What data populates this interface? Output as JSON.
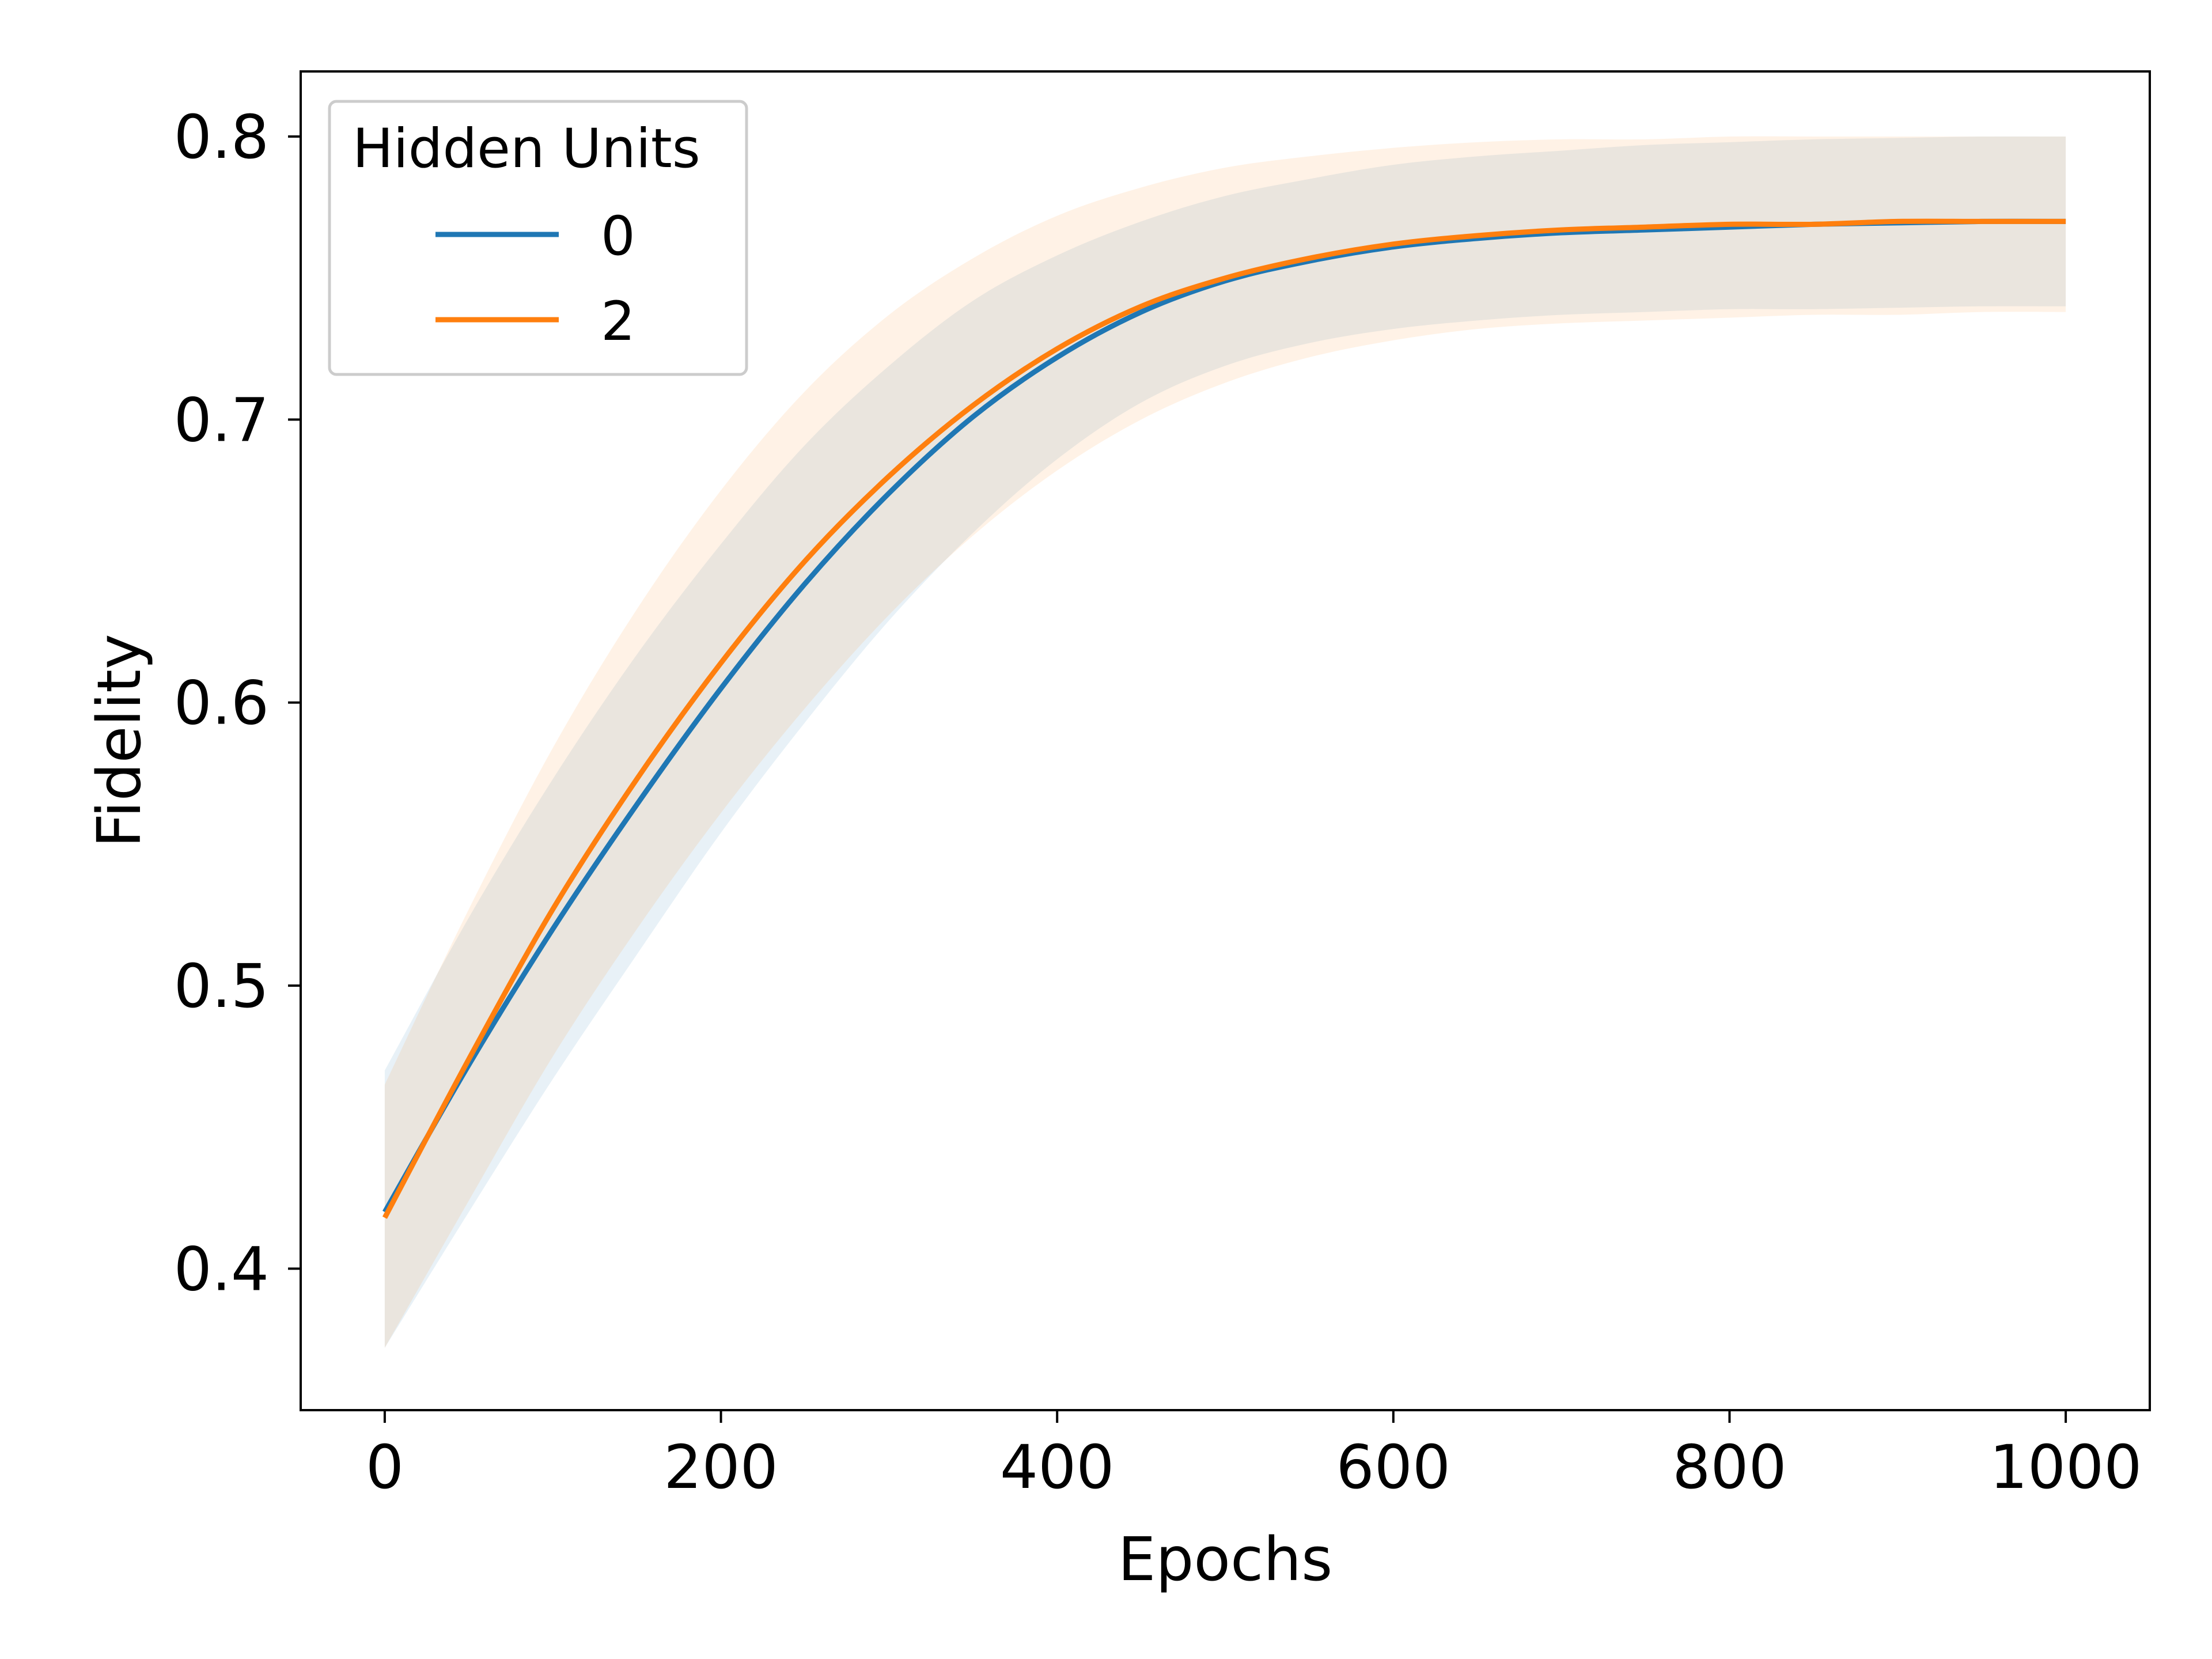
{
  "chart_data": {
    "type": "line",
    "title": "",
    "xlabel": "Epochs",
    "ylabel": "Fidelity",
    "xlim": [
      -50,
      1050
    ],
    "ylim": [
      0.35,
      0.823
    ],
    "xticks": [
      0,
      200,
      400,
      600,
      800,
      1000
    ],
    "xtick_labels": [
      "0",
      "200",
      "400",
      "600",
      "800",
      "1000"
    ],
    "yticks": [
      0.4,
      0.5,
      0.6,
      0.7,
      0.8
    ],
    "ytick_labels": [
      "0.4",
      "0.5",
      "0.6",
      "0.7",
      "0.8"
    ],
    "grid": false,
    "legend": {
      "title": "Hidden Units",
      "placement": "top-left"
    },
    "x": [
      0,
      50,
      100,
      150,
      200,
      250,
      300,
      350,
      400,
      450,
      500,
      550,
      600,
      650,
      700,
      750,
      800,
      850,
      900,
      950,
      1000
    ],
    "series": [
      {
        "name": "0",
        "color": "#1f77b4",
        "values": [
          0.42,
          0.472,
          0.52,
          0.564,
          0.605,
          0.642,
          0.674,
          0.701,
          0.722,
          0.738,
          0.749,
          0.756,
          0.761,
          0.764,
          0.766,
          0.767,
          0.768,
          0.769,
          0.7695,
          0.77,
          0.77
        ],
        "lower": [
          0.372,
          0.42,
          0.467,
          0.511,
          0.554,
          0.593,
          0.629,
          0.66,
          0.686,
          0.706,
          0.719,
          0.727,
          0.732,
          0.735,
          0.737,
          0.738,
          0.739,
          0.739,
          0.7395,
          0.74,
          0.74
        ],
        "upper": [
          0.47,
          0.524,
          0.573,
          0.617,
          0.656,
          0.691,
          0.719,
          0.742,
          0.758,
          0.77,
          0.779,
          0.785,
          0.79,
          0.793,
          0.795,
          0.797,
          0.798,
          0.799,
          0.7995,
          0.8,
          0.8
        ]
      },
      {
        "name": "2",
        "color": "#ff7f0e",
        "values": [
          0.418,
          0.474,
          0.527,
          0.573,
          0.614,
          0.65,
          0.68,
          0.705,
          0.725,
          0.74,
          0.75,
          0.757,
          0.762,
          0.765,
          0.767,
          0.768,
          0.769,
          0.769,
          0.77,
          0.77,
          0.77
        ],
        "lower": [
          0.372,
          0.424,
          0.475,
          0.52,
          0.561,
          0.598,
          0.631,
          0.659,
          0.682,
          0.7,
          0.713,
          0.722,
          0.728,
          0.732,
          0.734,
          0.735,
          0.736,
          0.737,
          0.737,
          0.738,
          0.738
        ],
        "upper": [
          0.465,
          0.527,
          0.584,
          0.633,
          0.675,
          0.71,
          0.737,
          0.757,
          0.772,
          0.782,
          0.789,
          0.793,
          0.796,
          0.798,
          0.799,
          0.799,
          0.8,
          0.8,
          0.8,
          0.8,
          0.8
        ]
      }
    ]
  }
}
